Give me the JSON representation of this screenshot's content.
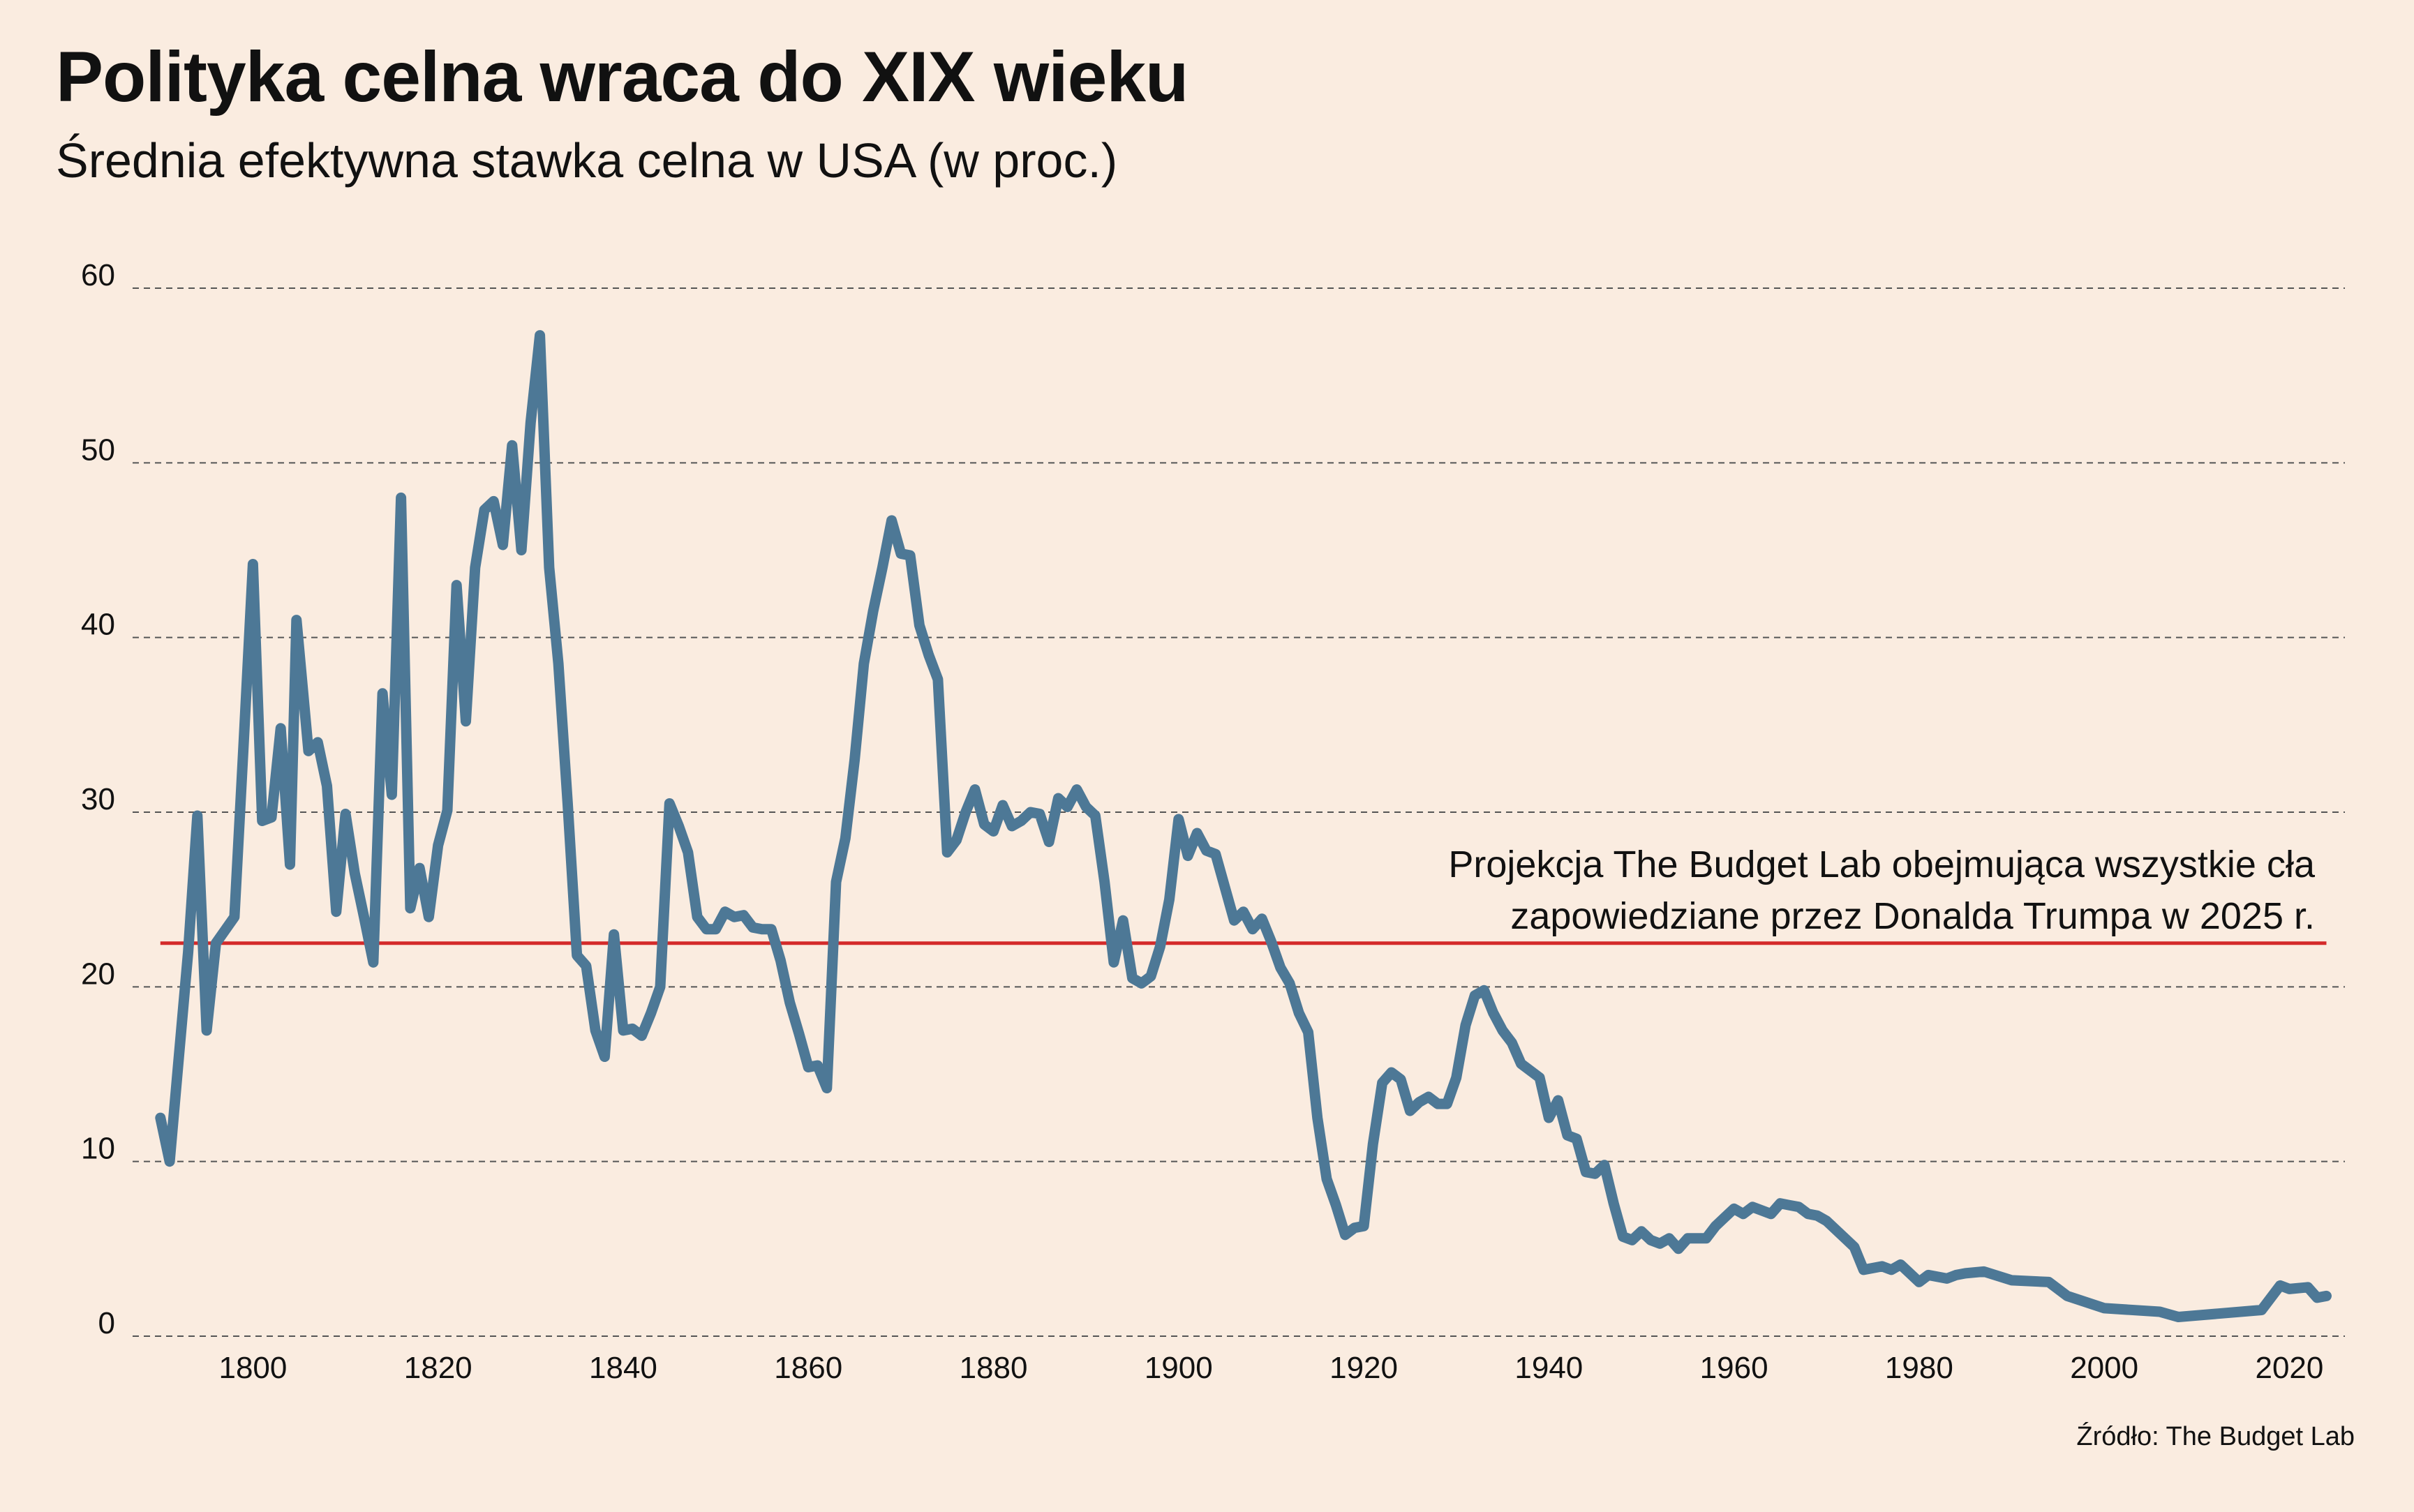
{
  "header": {
    "title": "Polityka celna wraca do XIX wieku",
    "subtitle": "Średnia efektywna stawka celna w USA (w proc.)"
  },
  "source": "Źródło: The Budget Lab",
  "colors": {
    "background": "#faece0",
    "line": "#4d7896",
    "projection": "#d42a2a",
    "grid": "#555555",
    "text": "#111111"
  },
  "chart_data": {
    "type": "line",
    "title": "Polityka celna wraca do XIX wieku",
    "subtitle": "Średnia efektywna stawka celna w USA (w proc.)",
    "xlabel": "",
    "ylabel": "",
    "xlim": [
      1787,
      2026
    ],
    "ylim": [
      0,
      60
    ],
    "x_ticks": [
      1800,
      1820,
      1840,
      1860,
      1880,
      1900,
      1920,
      1940,
      1960,
      1980,
      2000,
      2020
    ],
    "y_ticks": [
      0,
      10,
      20,
      30,
      40,
      50,
      60
    ],
    "grid": "horizontal dashed",
    "series": [
      {
        "points": [
          [
            1790,
            12.5
          ],
          [
            1791,
            10
          ],
          [
            1792,
            16
          ],
          [
            1793,
            22
          ],
          [
            1794,
            29.8
          ],
          [
            1795,
            17.5
          ],
          [
            1796,
            22.5
          ],
          [
            1798,
            24
          ],
          [
            1799,
            34
          ],
          [
            1800,
            44.2
          ],
          [
            1801,
            29.5
          ],
          [
            1802,
            29.7
          ],
          [
            1803,
            34.8
          ],
          [
            1804,
            27
          ],
          [
            1804.7,
            41
          ],
          [
            1806,
            33.5
          ],
          [
            1807,
            34
          ],
          [
            1808,
            31.5
          ],
          [
            1809,
            24.3
          ],
          [
            1810,
            29.9
          ],
          [
            1811,
            26.5
          ],
          [
            1812,
            24
          ],
          [
            1813,
            21.4
          ],
          [
            1814,
            36.8
          ],
          [
            1815,
            31
          ],
          [
            1816,
            48
          ],
          [
            1817,
            24.5
          ],
          [
            1818,
            26.8
          ],
          [
            1819,
            24
          ],
          [
            1820,
            28.1
          ],
          [
            1821,
            30.1
          ],
          [
            1822,
            43
          ],
          [
            1823,
            35.2
          ],
          [
            1824,
            44
          ],
          [
            1825,
            47.3
          ],
          [
            1826,
            47.8
          ],
          [
            1827,
            45.3
          ],
          [
            1828,
            51
          ],
          [
            1829,
            45
          ],
          [
            1830,
            52.3
          ],
          [
            1831,
            57.3
          ],
          [
            1832,
            44
          ],
          [
            1833,
            38.5
          ],
          [
            1834,
            30.5
          ],
          [
            1835,
            21.8
          ],
          [
            1836,
            21.2
          ],
          [
            1837,
            17.5
          ],
          [
            1838,
            16
          ],
          [
            1839,
            23
          ],
          [
            1840,
            17.5
          ],
          [
            1841,
            17.6
          ],
          [
            1842,
            17.2
          ],
          [
            1843,
            18.5
          ],
          [
            1844,
            20
          ],
          [
            1845,
            30.5
          ],
          [
            1846,
            29.2
          ],
          [
            1847,
            27.7
          ],
          [
            1848,
            24
          ],
          [
            1849,
            23.3
          ],
          [
            1850,
            23.3
          ],
          [
            1851,
            24.3
          ],
          [
            1852,
            24
          ],
          [
            1853,
            24.1
          ],
          [
            1854,
            23.4
          ],
          [
            1855,
            23.3
          ],
          [
            1856,
            23.3
          ],
          [
            1857,
            21.5
          ],
          [
            1858,
            19.1
          ],
          [
            1859,
            17.3
          ],
          [
            1860,
            15.4
          ],
          [
            1861,
            15.5
          ],
          [
            1862,
            14.2
          ],
          [
            1863,
            26
          ],
          [
            1864,
            28.5
          ],
          [
            1865,
            33
          ],
          [
            1866,
            38.5
          ],
          [
            1867,
            41.5
          ],
          [
            1868,
            44
          ],
          [
            1869,
            46.7
          ],
          [
            1870,
            44.8
          ],
          [
            1871,
            44.7
          ],
          [
            1872,
            40.7
          ],
          [
            1873,
            39
          ],
          [
            1874,
            37.6
          ],
          [
            1875,
            27.7
          ],
          [
            1876,
            28.4
          ],
          [
            1877,
            30
          ],
          [
            1878,
            31.3
          ],
          [
            1879,
            29.3
          ],
          [
            1880,
            28.9
          ],
          [
            1881,
            30.4
          ],
          [
            1882,
            29.2
          ],
          [
            1883,
            29.5
          ],
          [
            1884,
            30
          ],
          [
            1885,
            29.9
          ],
          [
            1886,
            28.3
          ],
          [
            1887,
            30.8
          ],
          [
            1888,
            30.3
          ],
          [
            1889,
            31.3
          ],
          [
            1890,
            30.3
          ],
          [
            1891,
            29.8
          ],
          [
            1892,
            26
          ],
          [
            1893,
            21.4
          ],
          [
            1894,
            23.8
          ],
          [
            1895,
            20.5
          ],
          [
            1896,
            20.2
          ],
          [
            1897,
            20.6
          ],
          [
            1898,
            22.3
          ],
          [
            1899,
            25
          ],
          [
            1900,
            29.6
          ],
          [
            1901,
            27.5
          ],
          [
            1902,
            28.8
          ],
          [
            1903,
            27.8
          ],
          [
            1904,
            27.6
          ],
          [
            1905,
            25.7
          ],
          [
            1906,
            23.8
          ],
          [
            1907,
            24.3
          ],
          [
            1908,
            23.3
          ],
          [
            1909,
            23.9
          ],
          [
            1910,
            22.6
          ],
          [
            1911,
            21.1
          ],
          [
            1912,
            20.2
          ],
          [
            1913,
            18.5
          ],
          [
            1914,
            17.4
          ],
          [
            1915,
            12.5
          ],
          [
            1916,
            9
          ],
          [
            1917,
            7.5
          ],
          [
            1918,
            5.8
          ],
          [
            1919,
            6.2
          ],
          [
            1920,
            6.3
          ],
          [
            1921,
            11
          ],
          [
            1922,
            14.5
          ],
          [
            1923,
            15.1
          ],
          [
            1924,
            14.7
          ],
          [
            1925,
            12.9
          ],
          [
            1926,
            13.4
          ],
          [
            1927,
            13.7
          ],
          [
            1928,
            13.3
          ],
          [
            1929,
            13.3
          ],
          [
            1930,
            14.8
          ],
          [
            1931,
            17.8
          ],
          [
            1932,
            19.5
          ],
          [
            1933,
            19.8
          ],
          [
            1934,
            18.5
          ],
          [
            1935,
            17.5
          ],
          [
            1936,
            16.8
          ],
          [
            1937,
            15.6
          ],
          [
            1938,
            15.2
          ],
          [
            1939,
            14.8
          ],
          [
            1940,
            12.5
          ],
          [
            1941,
            13.5
          ],
          [
            1942,
            11.5
          ],
          [
            1943,
            11.3
          ],
          [
            1944,
            9.4
          ],
          [
            1945,
            9.3
          ],
          [
            1946,
            9.8
          ],
          [
            1947,
            7.6
          ],
          [
            1948,
            5.7
          ],
          [
            1949,
            5.5
          ],
          [
            1950,
            6
          ],
          [
            1951,
            5.5
          ],
          [
            1952,
            5.3
          ],
          [
            1953,
            5.6
          ],
          [
            1954,
            5
          ],
          [
            1955,
            5.6
          ],
          [
            1956,
            5.6
          ],
          [
            1957,
            5.6
          ],
          [
            1958,
            6.3
          ],
          [
            1959,
            6.8
          ],
          [
            1960,
            7.3
          ],
          [
            1961,
            7
          ],
          [
            1962,
            7.4
          ],
          [
            1963,
            7.2
          ],
          [
            1964,
            7
          ],
          [
            1965,
            7.6
          ],
          [
            1966,
            7.5
          ],
          [
            1967,
            7.4
          ],
          [
            1968,
            7
          ],
          [
            1969,
            6.9
          ],
          [
            1970,
            6.6
          ],
          [
            1971,
            6.1
          ],
          [
            1972,
            5.6
          ],
          [
            1973,
            5.1
          ],
          [
            1974,
            3.8
          ],
          [
            1975,
            3.9
          ],
          [
            1976,
            4
          ],
          [
            1977,
            3.8
          ],
          [
            1978,
            4.1
          ],
          [
            1979,
            3.6
          ],
          [
            1980,
            3.1
          ],
          [
            1981,
            3.5
          ],
          [
            1982,
            3.4
          ],
          [
            1983,
            3.3
          ],
          [
            1984,
            3.5
          ],
          [
            1985,
            3.6
          ],
          [
            1987,
            3.7
          ],
          [
            1990,
            3.2
          ],
          [
            1994,
            3.1
          ],
          [
            1996,
            2.3
          ],
          [
            2000,
            1.6
          ],
          [
            2006,
            1.4
          ],
          [
            2008,
            1.1
          ],
          [
            2017,
            1.5
          ],
          [
            2019,
            2.9
          ],
          [
            2020,
            2.7
          ],
          [
            2022,
            2.8
          ],
          [
            2023,
            2.2
          ],
          [
            2024,
            2.3
          ]
        ]
      }
    ],
    "reference_line": {
      "y": 22.5,
      "x_range": [
        1790,
        2024
      ],
      "label_lines": [
        "Projekcja The Budget Lab obejmująca wszystkie cła",
        "zapowiedziane przez Donalda Trumpa w 2025 r."
      ]
    }
  }
}
